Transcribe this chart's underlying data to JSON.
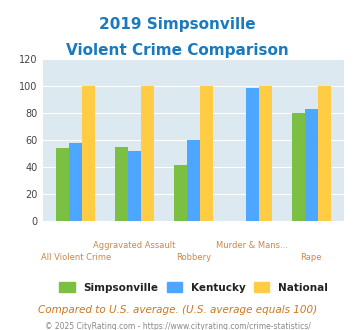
{
  "title_line1": "2019 Simpsonville",
  "title_line2": "Violent Crime Comparison",
  "categories": [
    "All Violent Crime",
    "Aggravated Assault",
    "Robbery",
    "Murder & Mans...",
    "Rape"
  ],
  "cat_line1": [
    "",
    "Aggravated Assault",
    "",
    "Murder & Mans...",
    ""
  ],
  "cat_line2": [
    "All Violent Crime",
    "",
    "Robbery",
    "",
    "Rape"
  ],
  "simpsonville": [
    54,
    55,
    42,
    0,
    80
  ],
  "kentucky": [
    58,
    52,
    60,
    99,
    83
  ],
  "national": [
    100,
    100,
    100,
    100,
    100
  ],
  "colors": {
    "simpsonville": "#7bc043",
    "kentucky": "#4da6ff",
    "national": "#ffcc44"
  },
  "ylim": [
    0,
    120
  ],
  "yticks": [
    0,
    20,
    40,
    60,
    80,
    100,
    120
  ],
  "bg_color": "#dce9f0",
  "title_color": "#1a7abf",
  "xlabel_color": "#cc8844",
  "footer_text": "Compared to U.S. average. (U.S. average equals 100)",
  "credit_text": "© 2025 CityRating.com - https://www.cityrating.com/crime-statistics/",
  "legend_labels": [
    "Simpsonville",
    "Kentucky",
    "National"
  ],
  "bar_width": 0.22
}
